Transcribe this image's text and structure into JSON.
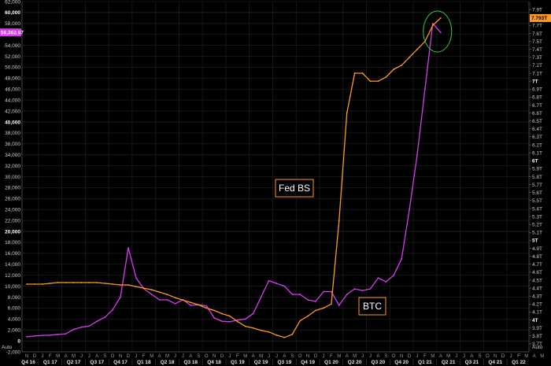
{
  "chart_data": {
    "type": "line",
    "title": "",
    "x": [
      "2016-11",
      "2016-12",
      "2017-01",
      "2017-02",
      "2017-03",
      "2017-04",
      "2017-05",
      "2017-06",
      "2017-07",
      "2017-08",
      "2017-09",
      "2017-10",
      "2017-11",
      "2017-12",
      "2018-01",
      "2018-02",
      "2018-03",
      "2018-04",
      "2018-05",
      "2018-06",
      "2018-07",
      "2018-08",
      "2018-09",
      "2018-10",
      "2018-11",
      "2018-12",
      "2019-01",
      "2019-02",
      "2019-03",
      "2019-04",
      "2019-05",
      "2019-06",
      "2019-07",
      "2019-08",
      "2019-09",
      "2019-10",
      "2019-11",
      "2019-12",
      "2020-01",
      "2020-02",
      "2020-03",
      "2020-04",
      "2020-05",
      "2020-06",
      "2020-07",
      "2020-08",
      "2020-09",
      "2020-10",
      "2020-11",
      "2020-12",
      "2021-01",
      "2021-02",
      "2021-03",
      "2021-04"
    ],
    "series": [
      {
        "name": "BTC",
        "color": "#d63cf0",
        "axis": "left",
        "values": [
          740,
          900,
          1000,
          1050,
          1200,
          1300,
          2100,
          2500,
          2700,
          3600,
          4300,
          5700,
          8000,
          17000,
          11500,
          9500,
          8500,
          7500,
          7500,
          6800,
          7500,
          6500,
          6600,
          6400,
          4200,
          3600,
          3500,
          3800,
          4000,
          5000,
          8000,
          11000,
          10500,
          10000,
          8500,
          8500,
          7500,
          7200,
          9000,
          9000,
          6500,
          8500,
          9500,
          9200,
          9500,
          11500,
          10800,
          12000,
          15000,
          24000,
          34000,
          46000,
          58000,
          56362.97
        ]
      },
      {
        "name": "Fed BS",
        "color": "#ff9a1f",
        "axis": "right",
        "values": [
          4.45,
          4.45,
          4.45,
          4.46,
          4.47,
          4.47,
          4.47,
          4.47,
          4.47,
          4.47,
          4.46,
          4.45,
          4.44,
          4.44,
          4.42,
          4.4,
          4.38,
          4.35,
          4.32,
          4.28,
          4.25,
          4.22,
          4.19,
          4.15,
          4.12,
          4.08,
          4.05,
          3.98,
          3.92,
          3.9,
          3.87,
          3.85,
          3.81,
          3.78,
          3.82,
          3.99,
          4.05,
          4.12,
          4.15,
          4.2,
          5.25,
          6.6,
          7.1,
          7.1,
          7.0,
          7.0,
          7.05,
          7.15,
          7.2,
          7.3,
          7.4,
          7.5,
          7.7,
          7.793
        ]
      }
    ],
    "left_axis": {
      "ylim": [
        -2000,
        62000
      ],
      "ticks": [
        "-2,000",
        "0",
        "2,000",
        "4,000",
        "6,000",
        "8,000",
        "10,000",
        "12,000",
        "14,000",
        "16,000",
        "18,000",
        "20,000",
        "22,000",
        "24,000",
        "26,000",
        "28,000",
        "30,000",
        "32,000",
        "34,000",
        "36,000",
        "38,000",
        "40,000",
        "42,000",
        "44,000",
        "46,000",
        "48,000",
        "50,000",
        "52,000",
        "54,000",
        "56,000",
        "58,000",
        "60,000",
        "62,000"
      ],
      "bold_ticks": [
        "0",
        "20,000",
        "40,000",
        "60,000"
      ]
    },
    "right_axis": {
      "ylim": [
        3.6,
        8.0
      ],
      "ticks": [
        "3.7T",
        "3.8T",
        "3.9T",
        "4T",
        "4.1T",
        "4.2T",
        "4.3T",
        "4.4T",
        "4.5T",
        "4.6T",
        "4.7T",
        "4.8T",
        "4.9T",
        "5T",
        "5.1T",
        "5.2T",
        "5.3T",
        "5.4T",
        "5.5T",
        "5.6T",
        "5.7T",
        "5.8T",
        "5.9T",
        "6T",
        "6.1T",
        "6.2T",
        "6.3T",
        "6.4T",
        "6.5T",
        "6.6T",
        "6.7T",
        "6.8T",
        "6.9T",
        "7T",
        "7.1T",
        "7.2T",
        "7.3T",
        "7.4T",
        "7.5T",
        "7.6T",
        "7.7T",
        "7.9T"
      ],
      "bold_ticks": [
        "4T",
        "5T",
        "6T",
        "7T"
      ]
    },
    "x_months": [
      "N",
      "D",
      "J",
      "F",
      "M",
      "A",
      "M",
      "J",
      "J",
      "A",
      "S",
      "O",
      "N",
      "D",
      "J",
      "F",
      "M",
      "A",
      "M",
      "J",
      "J",
      "A",
      "S",
      "O",
      "N",
      "D",
      "J",
      "F",
      "M",
      "A",
      "M",
      "J",
      "J",
      "A",
      "S",
      "O",
      "N",
      "D",
      "J",
      "F",
      "M",
      "A",
      "M",
      "J",
      "J",
      "A",
      "S",
      "O",
      "N",
      "D",
      "J",
      "F",
      "M",
      "A",
      "M",
      "J",
      "J",
      "A",
      "S",
      "O",
      "N",
      "D",
      "J",
      "F",
      "M",
      "A",
      "M"
    ],
    "x_quarters": [
      "Q4 16",
      "Q1 17",
      "Q2 17",
      "Q3 17",
      "Q4 17",
      "Q1 18",
      "Q2 18",
      "Q3 18",
      "Q4 18",
      "Q1 19",
      "Q2 19",
      "Q3 19",
      "Q4 19",
      "Q1 20",
      "Q2 20",
      "Q3 20",
      "Q4 20",
      "Q1 21",
      "Q2 21",
      "Q3 21",
      "Q4 21",
      "Q1 22"
    ],
    "annotations": [
      {
        "text": "Fed BS",
        "color": "#ff9a1f"
      },
      {
        "text": "BTC",
        "color": "#ff9a1f"
      }
    ],
    "last_value_flags": {
      "left": "56,362.97",
      "right": "7.793T"
    },
    "axis_corner_labels": {
      "left": "Auto",
      "right": "Auto"
    },
    "highlight_circle_color": "#2ecc40",
    "grid": true,
    "background": "#000000"
  }
}
